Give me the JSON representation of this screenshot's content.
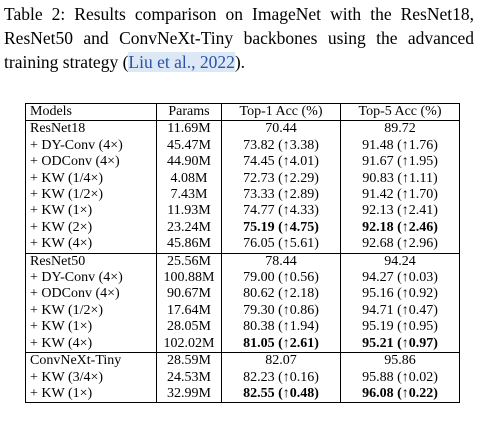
{
  "caption": {
    "label": "Table 2:",
    "text": "Results comparison on ImageNet with the ResNet18, ResNet50 and ConvNeXt-Tiny backbones using the advanced training strategy (",
    "citation": "Liu et al., 2022",
    "end": ")."
  },
  "table": {
    "header": [
      "Models",
      "Params",
      "Top-1 Acc (%)",
      "Top-5 Acc (%)"
    ],
    "bold_columns": [
      2,
      3
    ],
    "groups": [
      {
        "bold_row": 6,
        "rows": [
          [
            "ResNet18",
            "11.69M",
            "70.44",
            "89.72"
          ],
          [
            "+ DY-Conv (4×)",
            "45.47M",
            "73.82 (↑3.38)",
            "91.48 (↑1.76)"
          ],
          [
            "+ ODConv (4×)",
            "44.90M",
            "74.45 (↑4.01)",
            "91.67 (↑1.95)"
          ],
          [
            "+ KW (1/4×)",
            "4.08M",
            "72.73 (↑2.29)",
            "90.83 (↑1.11)"
          ],
          [
            "+ KW (1/2×)",
            "7.43M",
            "73.33 (↑2.89)",
            "91.42 (↑1.70)"
          ],
          [
            "+ KW (1×)",
            "11.93M",
            "74.77 (↑4.33)",
            "92.13 (↑2.41)"
          ],
          [
            "+ KW (2×)",
            "23.24M",
            "75.19 (↑4.75)",
            "92.18 (↑2.46)"
          ],
          [
            "+ KW (4×)",
            "45.86M",
            "76.05 (↑5.61)",
            "92.68 (↑2.96)"
          ]
        ]
      },
      {
        "bold_row": 5,
        "rows": [
          [
            "ResNet50",
            "25.56M",
            "78.44",
            "94.24"
          ],
          [
            "+ DY-Conv (4×)",
            "100.88M",
            "79.00 (↑0.56)",
            "94.27 (↑0.03)"
          ],
          [
            "+ ODConv (4×)",
            "90.67M",
            "80.62 (↑2.18)",
            "95.16 (↑0.92)"
          ],
          [
            "+ KW (1/2×)",
            "17.64M",
            "79.30 (↑0.86)",
            "94.71 (↑0.47)"
          ],
          [
            "+ KW (1×)",
            "28.05M",
            "80.38 (↑1.94)",
            "95.19 (↑0.95)"
          ],
          [
            "+ KW (4×)",
            "102.02M",
            "81.05 (↑2.61)",
            "95.21 (↑0.97)"
          ]
        ]
      },
      {
        "bold_row": 2,
        "rows": [
          [
            "ConvNeXt-Tiny",
            "28.59M",
            "82.07",
            "95.86"
          ],
          [
            "+ KW (3/4×)",
            "24.53M",
            "82.23 (↑0.16)",
            "95.88 (↑0.02)"
          ],
          [
            "+ KW (1×)",
            "32.99M",
            "82.55 (↑0.48)",
            "96.08 (↑0.22)"
          ]
        ]
      }
    ]
  }
}
